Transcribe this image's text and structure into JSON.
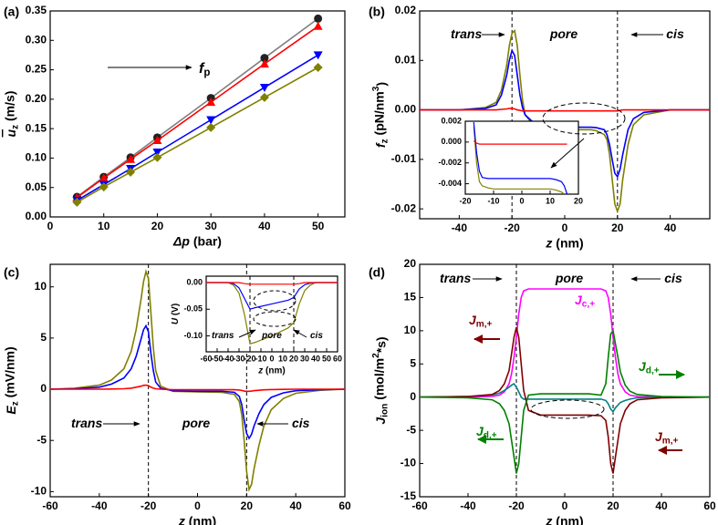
{
  "chart_data": [
    {
      "type": "line",
      "label": "(a)",
      "xlabel": [
        {
          "i": "Δp"
        },
        " (bar)"
      ],
      "ylabel": [
        {
          "i": "u",
          "overline": true
        },
        {
          "sub": "z"
        },
        " (m/s)"
      ],
      "x": [
        5,
        10,
        15,
        20,
        30,
        40,
        50
      ],
      "xlim": [
        0,
        55
      ],
      "xticks": [
        0,
        10,
        20,
        30,
        40,
        50
      ],
      "ylim": [
        0,
        0.35
      ],
      "yticks": [
        {
          "value": 0,
          "label": "0.00"
        },
        0.05,
        {
          "value": 0.1,
          "label": "0.10"
        },
        0.15,
        {
          "value": 0.2,
          "label": "0.20"
        },
        0.25,
        {
          "value": 0.3,
          "label": "0.30"
        },
        0.35
      ],
      "series": [
        {
          "color": "#222222",
          "line_color": "#808080",
          "marker": "circle",
          "values": [
            0.034,
            0.068,
            0.101,
            0.135,
            0.202,
            0.27,
            0.337
          ]
        },
        {
          "color": "#ff0000",
          "line_color": "#ff0000",
          "marker": "triangle-up",
          "values": [
            0.033,
            0.066,
            0.098,
            0.13,
            0.195,
            0.26,
            0.324
          ]
        },
        {
          "color": "#0000ff",
          "line_color": "#0000ff",
          "marker": "triangle-down",
          "values": [
            0.028,
            0.055,
            0.082,
            0.11,
            0.165,
            0.22,
            0.275
          ]
        },
        {
          "color": "#808000",
          "line_color": "#808000",
          "marker": "diamond",
          "values": [
            0.025,
            0.051,
            0.076,
            0.101,
            0.152,
            0.203,
            0.254
          ]
        }
      ],
      "annotations": [
        {
          "segs": [
            {
              "i": "f"
            },
            {
              "sub": "p"
            }
          ]
        }
      ]
    },
    {
      "type": "line",
      "label": "(b)",
      "xlabel": [
        {
          "i": "z"
        },
        " (nm)"
      ],
      "ylabel": [
        {
          "i": "f"
        },
        {
          "sub": "z"
        },
        " (pN/nm",
        {
          "sup": "3"
        },
        ")"
      ],
      "x": [
        -55,
        -40,
        -30,
        -26,
        -24,
        -22,
        -21,
        -20,
        -19,
        -18,
        -17,
        -16,
        -15,
        -12,
        -10,
        0,
        10,
        12,
        15,
        16,
        17,
        18,
        19,
        20,
        21,
        22,
        24,
        26,
        30,
        40,
        55
      ],
      "xlim": [
        -55,
        55
      ],
      "xticks": [
        -40,
        -20,
        0,
        20,
        40
      ],
      "ylim": [
        -0.022,
        0.02
      ],
      "yticks": [
        -0.02,
        -0.01,
        {
          "value": 0,
          "label": "0.00"
        },
        0.01,
        0.02
      ],
      "vlines": [
        -20,
        20
      ],
      "series": [
        {
          "color": "#808000",
          "values": [
            0,
            0,
            0.0005,
            0.0015,
            0.004,
            0.009,
            0.013,
            0.0155,
            0.016,
            0.013,
            0.007,
            0.002,
            -0.001,
            -0.003,
            -0.0038,
            -0.004,
            -0.004,
            -0.0042,
            -0.005,
            -0.006,
            -0.009,
            -0.014,
            -0.019,
            -0.0205,
            -0.019,
            -0.014,
            -0.007,
            -0.003,
            -0.001,
            0,
            0
          ]
        },
        {
          "color": "#0000ff",
          "values": [
            0,
            0,
            0.0003,
            0.001,
            0.003,
            0.007,
            0.01,
            0.012,
            0.011,
            0.007,
            0.003,
            0.0005,
            -0.001,
            -0.0025,
            -0.003,
            -0.0035,
            -0.0035,
            -0.0036,
            -0.004,
            -0.005,
            -0.007,
            -0.01,
            -0.0128,
            -0.0135,
            -0.012,
            -0.009,
            -0.004,
            -0.0018,
            -0.0005,
            0,
            0
          ]
        },
        {
          "color": "#ff0000",
          "values": [
            0,
            0,
            0,
            0,
            0.0001,
            0.0002,
            0.0003,
            0.0003,
            0.0002,
            0,
            -0.0001,
            -0.0002,
            -0.0002,
            -0.0002,
            -0.0002,
            -0.0002,
            -0.0002,
            -0.0002,
            -0.0002,
            -0.0002,
            -0.0002,
            -0.0002,
            -0.0002,
            -0.0002,
            -0.0001,
            0,
            0,
            0,
            0,
            0,
            0
          ]
        }
      ],
      "annotations": [
        {
          "segs": [
            {
              "i": "trans"
            }
          ]
        },
        {
          "segs": [
            {
              "i": "pore"
            }
          ]
        },
        {
          "segs": [
            {
              "i": "cis"
            }
          ]
        }
      ],
      "inset": {
        "type": "line",
        "x": [
          -17,
          -16,
          -15,
          -14,
          -12,
          -10,
          0,
          10,
          12,
          14,
          15,
          16
        ],
        "xlim": [
          -20,
          20
        ],
        "xticks": [
          -20,
          -10,
          0,
          10,
          20
        ],
        "ylim": [
          -0.005,
          0.002
        ],
        "yticks": [
          -0.004,
          -0.002,
          {
            "value": 0,
            "label": "0.000"
          },
          0.002
        ],
        "series": [
          {
            "color": "#808000",
            "values": [
              0.0015,
              -0.002,
              -0.0038,
              -0.0042,
              -0.0044,
              -0.0045,
              -0.0045,
              -0.0045,
              -0.0046,
              -0.0048,
              -0.005,
              null
            ]
          },
          {
            "color": "#0000ff",
            "values": [
              0.0019,
              -0.001,
              -0.0028,
              -0.0034,
              -0.0035,
              -0.0035,
              -0.0035,
              -0.0035,
              -0.0036,
              -0.0038,
              -0.0042,
              -0.005
            ]
          },
          {
            "color": "#ff0000",
            "values": [
              0.0001,
              -0.0001,
              -0.0002,
              -0.0002,
              -0.0002,
              -0.0002,
              -0.0002,
              -0.0002,
              -0.0002,
              -0.0002,
              -0.0002,
              -0.0002
            ]
          }
        ]
      }
    },
    {
      "type": "line",
      "label": "(c)",
      "xlabel": [
        {
          "i": "z"
        },
        " (nm)"
      ],
      "ylabel": [
        {
          "i": "E"
        },
        {
          "sub": "z"
        },
        " (mV/nm)"
      ],
      "x": [
        -60,
        -50,
        -40,
        -35,
        -30,
        -27,
        -25,
        -23,
        -22,
        -21,
        -20,
        -19,
        -18,
        -17,
        -15,
        -10,
        0,
        10,
        15,
        17,
        18,
        19,
        20,
        21,
        22,
        23,
        25,
        27,
        30,
        35,
        40,
        50,
        60
      ],
      "xlim": [
        -60,
        60
      ],
      "xticks": [
        -60,
        -40,
        -20,
        0,
        20,
        40,
        60
      ],
      "ylim": [
        -10.5,
        12.2
      ],
      "yticks": [
        -10,
        -5,
        0,
        5,
        10
      ],
      "vlines": [
        -20,
        20
      ],
      "series": [
        {
          "color": "#808000",
          "values": [
            0,
            0.1,
            0.4,
            0.9,
            2.0,
            3.7,
            5.8,
            8.8,
            10.5,
            11.5,
            10.8,
            7.5,
            4,
            1.8,
            0.3,
            -0.2,
            -0.25,
            -0.3,
            -0.5,
            -1.2,
            -2.5,
            -5,
            -8,
            -9.8,
            -9.3,
            -7.8,
            -5.5,
            -3.6,
            -2,
            -0.9,
            -0.4,
            -0.1,
            0
          ]
        },
        {
          "color": "#0000ff",
          "values": [
            0,
            0.05,
            0.2,
            0.5,
            1.1,
            2.0,
            3.2,
            4.9,
            5.8,
            6.2,
            5.6,
            3.5,
            1.8,
            0.7,
            0.1,
            -0.15,
            -0.2,
            -0.2,
            -0.3,
            -0.7,
            -1.5,
            -3,
            -4.3,
            -4.8,
            -4.4,
            -3.6,
            -2.4,
            -1.5,
            -0.8,
            -0.35,
            -0.15,
            -0.05,
            0
          ]
        },
        {
          "color": "#ff0000",
          "values": [
            0,
            0,
            0,
            0.02,
            0.05,
            0.1,
            0.2,
            0.3,
            0.38,
            0.4,
            0.35,
            0.2,
            0.1,
            0.05,
            0,
            -0.05,
            -0.05,
            -0.05,
            -0.05,
            -0.08,
            -0.12,
            -0.18,
            -0.2,
            -0.2,
            -0.18,
            -0.14,
            -0.1,
            -0.06,
            -0.03,
            -0.01,
            0,
            0,
            0
          ]
        }
      ],
      "annotations": [
        {
          "segs": [
            {
              "i": "trans"
            }
          ]
        },
        {
          "segs": [
            {
              "i": "pore"
            }
          ]
        },
        {
          "segs": [
            {
              "i": "cis"
            }
          ]
        }
      ],
      "inset": {
        "type": "line",
        "xlabel": [
          {
            "i": "z"
          },
          " (nm)"
        ],
        "ylabel": [
          {
            "i": "U"
          },
          " (V)"
        ],
        "x": [
          -60,
          -40,
          -35,
          -30,
          -25,
          -20,
          -15,
          0,
          15,
          20,
          25,
          30,
          35,
          40,
          60
        ],
        "xlim": [
          -60,
          60
        ],
        "xticks": [
          -60,
          -50,
          -40,
          -30,
          -20,
          -10,
          0,
          10,
          20,
          30,
          40,
          50,
          60
        ],
        "ylim": [
          -0.13,
          0.012
        ],
        "yticks": [
          {
            "value": 0,
            "label": "0.00"
          },
          -0.05,
          {
            "value": -0.1,
            "label": "-0.10"
          }
        ],
        "vlines": [
          -20,
          20
        ],
        "series": [
          {
            "color": "#808000",
            "values": [
              0,
              0,
              -0.005,
              -0.02,
              -0.06,
              -0.115,
              -0.112,
              -0.1,
              -0.085,
              -0.075,
              -0.04,
              -0.015,
              -0.005,
              0,
              0
            ]
          },
          {
            "color": "#0000ff",
            "values": [
              0,
              0,
              -0.002,
              -0.01,
              -0.03,
              -0.05,
              -0.047,
              -0.04,
              -0.033,
              -0.028,
              -0.012,
              -0.004,
              -0.001,
              0,
              0
            ]
          },
          {
            "color": "#ff0000",
            "values": [
              0,
              0,
              0,
              0,
              -0.002,
              -0.003,
              -0.003,
              -0.003,
              -0.003,
              -0.003,
              -0.002,
              0,
              0,
              0,
              0
            ]
          }
        ],
        "annotations": [
          {
            "segs": [
              {
                "i": "trans"
              }
            ]
          },
          {
            "segs": [
              {
                "i": "pore"
              }
            ]
          },
          {
            "segs": [
              {
                "i": "cis"
              }
            ]
          }
        ]
      }
    },
    {
      "type": "line",
      "label": "(d)",
      "xlabel": [
        {
          "i": "z"
        },
        " (nm)"
      ],
      "ylabel": [
        {
          "i": "J"
        },
        {
          "sub": "ion"
        },
        " (mol/m",
        {
          "sup": "2"
        },
        "*s)"
      ],
      "x": [
        -60,
        -40,
        -30,
        -27,
        -25,
        -23,
        -22,
        -21,
        -20,
        -19,
        -18,
        -17,
        -15,
        -10,
        0,
        10,
        15,
        17,
        18,
        19,
        20,
        21,
        22,
        23,
        25,
        27,
        30,
        40,
        60
      ],
      "xlim": [
        -60,
        60
      ],
      "xticks": [
        -60,
        -40,
        -20,
        0,
        20,
        40,
        60
      ],
      "ylim": [
        -15,
        20
      ],
      "yticks": [
        -15,
        -10,
        -5,
        0,
        5,
        10,
        15,
        20
      ],
      "vlines": [
        -20,
        20
      ],
      "series": [
        {
          "color": "#ff00ff",
          "values": [
            0,
            0,
            0.1,
            0.3,
            0.8,
            2,
            3.5,
            6,
            9,
            12.5,
            15,
            16,
            16.3,
            16.3,
            16.3,
            16.3,
            16.3,
            16,
            15,
            12.5,
            9,
            6,
            3.5,
            2,
            0.8,
            0.3,
            0.1,
            0,
            0
          ]
        },
        {
          "color": "#008080",
          "values": [
            0,
            0.1,
            0.3,
            0.6,
            1,
            1.5,
            1.8,
            2,
            1.5,
            0.8,
            0,
            -0.3,
            -0.3,
            -0.3,
            -0.3,
            -0.3,
            -0.3,
            -0.5,
            -1,
            -1.8,
            -2.2,
            -1.6,
            -1.2,
            -0.8,
            -0.5,
            -0.3,
            -0.1,
            0,
            0
          ]
        },
        {
          "color": "#800000",
          "values": [
            0,
            0.1,
            0.4,
            1,
            2,
            4,
            6.5,
            9,
            10.5,
            9,
            5,
            1,
            -2,
            -2.7,
            -2.7,
            -2.7,
            -2.8,
            -3.5,
            -6,
            -10,
            -11.5,
            -9,
            -6.5,
            -4,
            -2,
            -1,
            -0.4,
            -0.1,
            0
          ]
        },
        {
          "color": "#008000",
          "values": [
            0,
            -0.1,
            -0.4,
            -1,
            -2,
            -4,
            -6.5,
            -9,
            -11.5,
            -10,
            -6,
            -2,
            0.3,
            0.5,
            0.5,
            0.5,
            0.3,
            2,
            6,
            9.5,
            10,
            8,
            6,
            3.8,
            1.8,
            0.9,
            0.4,
            0.1,
            0
          ]
        }
      ],
      "annotations": [
        {
          "segs": [
            {
              "i": "trans"
            }
          ]
        },
        {
          "segs": [
            {
              "i": "pore"
            }
          ]
        },
        {
          "segs": [
            {
              "i": "cis"
            }
          ]
        },
        {
          "segs": [
            {
              "i": "J"
            },
            {
              "sub": "c,+"
            }
          ],
          "color": "#ff00ff"
        },
        {
          "segs": [
            {
              "i": "J"
            },
            {
              "sub": "m,+"
            }
          ],
          "color": "#800000"
        },
        {
          "segs": [
            {
              "i": "J"
            },
            {
              "sub": "d,+"
            }
          ],
          "color": "#008000"
        },
        {
          "segs": [
            {
              "i": "J"
            },
            {
              "sub": "m,+"
            }
          ],
          "color": "#800000"
        },
        {
          "segs": [
            {
              "i": "J"
            },
            {
              "sub": "d,+"
            }
          ],
          "color": "#008000"
        }
      ]
    }
  ]
}
